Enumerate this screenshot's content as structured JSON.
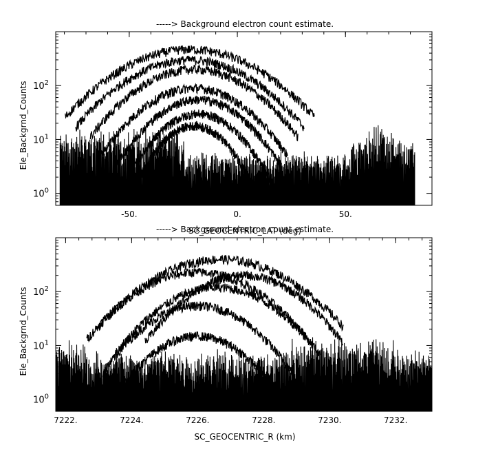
{
  "chart_data": [
    {
      "type": "line",
      "title": "-----> Background electron count estimate.",
      "xlabel": "SC_GEOCENTRIC_LAT (deg)",
      "ylabel": "Ele_Backgrnd_Counts",
      "xlim": [
        -84,
        90
      ],
      "ylim": [
        0.6,
        1000
      ],
      "yscale": "log",
      "grid": false,
      "x_ticks": [
        -50,
        0,
        50
      ],
      "x_tick_labels": [
        "-50.",
        "0.",
        "50."
      ],
      "y_ticks": [
        1,
        10,
        100
      ],
      "y_tick_labels": [
        "10^0",
        "10^1",
        "10^2"
      ],
      "data_extent_x": [
        -82,
        82
      ],
      "background_level": 2,
      "series": [
        {
          "peak_x": -22,
          "peak_y": 470,
          "width": 24
        },
        {
          "peak_x": -22,
          "peak_y": 300,
          "width": 22
        },
        {
          "peak_x": -20,
          "peak_y": 200,
          "width": 20
        },
        {
          "peak_x": -20,
          "peak_y": 90,
          "width": 18
        },
        {
          "peak_x": -18,
          "peak_y": 55,
          "width": 16
        },
        {
          "peak_x": -18,
          "peak_y": 30,
          "width": 14
        },
        {
          "peak_x": -20,
          "peak_y": 18,
          "width": 12
        }
      ]
    },
    {
      "type": "line",
      "title": "-----> Background electron count estimate.",
      "xlabel": "SC_GEOCENTRIC_R (km)",
      "ylabel": "Ele_Backgrnd_Counts",
      "xlim": [
        7221.7,
        7233.1
      ],
      "ylim": [
        0.6,
        1000
      ],
      "yscale": "log",
      "grid": false,
      "x_ticks": [
        7222,
        7224,
        7226,
        7228,
        7230,
        7232
      ],
      "x_tick_labels": [
        "7222.",
        "7224.",
        "7226.",
        "7228.",
        "7230.",
        "7232."
      ],
      "y_ticks": [
        1,
        10,
        100
      ],
      "y_tick_labels": [
        "10^0",
        "10^1",
        "10^2"
      ],
      "data_extent_x": [
        7221.7,
        7233.1
      ],
      "background_level": 2,
      "series": [
        {
          "peak_x": 7226.7,
          "peak_y": 400,
          "width": 1.55
        },
        {
          "peak_x": 7227.4,
          "peak_y": 200,
          "width": 1.25
        },
        {
          "peak_x": 7226.0,
          "peak_y": 230,
          "width": 1.4
        },
        {
          "peak_x": 7226.6,
          "peak_y": 120,
          "width": 1.3
        },
        {
          "peak_x": 7226.0,
          "peak_y": 55,
          "width": 1.2
        },
        {
          "peak_x": 7226.0,
          "peak_y": 15,
          "width": 1.1
        }
      ]
    }
  ]
}
